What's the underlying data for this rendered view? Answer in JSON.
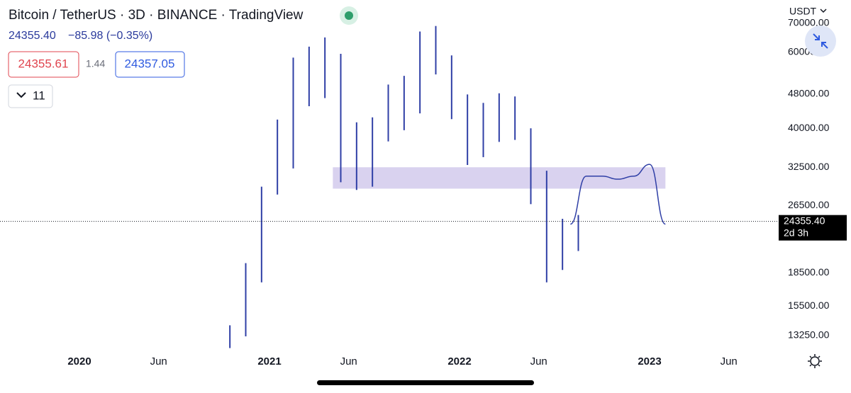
{
  "header": {
    "title": "Bitcoin / TetherUS · 3D · BINANCE · TradingView",
    "price": "24355.40",
    "change": "−85.98 (−0.35%)",
    "bid": "24355.61",
    "spread": "1.44",
    "ask": "24357.05",
    "indicators": "11",
    "currency": "USDT"
  },
  "chart_data": {
    "type": "ohlc",
    "color": "#2f3fa6",
    "log_scale": true,
    "ylim": [
      12240,
      79250
    ],
    "yticks": [
      {
        "value": 70000,
        "label": "70000.00"
      },
      {
        "value": 60000,
        "label": "60000.00"
      },
      {
        "value": 48000,
        "label": "48000.00"
      },
      {
        "value": 40000,
        "label": "40000.00"
      },
      {
        "value": 32500,
        "label": "32500.00"
      },
      {
        "value": 26500,
        "label": "26500.00"
      },
      {
        "value": 18500,
        "label": "18500.00"
      },
      {
        "value": 15500,
        "label": "15500.00"
      },
      {
        "value": 13250,
        "label": "13250.00"
      }
    ],
    "xticks": [
      {
        "value": "2020-01",
        "label": "2020"
      },
      {
        "value": "2020-06",
        "label": "Jun"
      },
      {
        "value": "2021-01",
        "label": "2021"
      },
      {
        "value": "2021-06",
        "label": "Jun"
      },
      {
        "value": "2022-01",
        "label": "2022"
      },
      {
        "value": "2022-06",
        "label": "Jun"
      },
      {
        "value": "2023-01",
        "label": "2023"
      },
      {
        "value": "2023-06",
        "label": "Jun"
      }
    ],
    "x": [
      "2020-10",
      "2020-11",
      "2020-12",
      "2021-01",
      "2021-02",
      "2021-03",
      "2021-04",
      "2021-05",
      "2021-06",
      "2021-07",
      "2021-08",
      "2021-09",
      "2021-10",
      "2021-11",
      "2021-12",
      "2022-01",
      "2022-02",
      "2022-03",
      "2022-04",
      "2022-05",
      "2022-06",
      "2022-07",
      "2022-08"
    ],
    "high": [
      14000,
      19500,
      29300,
      41900,
      58300,
      61800,
      64900,
      59500,
      41300,
      42400,
      50500,
      52900,
      67000,
      69000,
      59000,
      47900,
      45800,
      48200,
      47400,
      40000,
      31900,
      24700,
      25200
    ],
    "low": [
      12400,
      13200,
      17600,
      28100,
      32300,
      45000,
      47000,
      30000,
      28800,
      29300,
      37300,
      39600,
      43300,
      53300,
      42000,
      32900,
      34300,
      37200,
      37600,
      26700,
      17600,
      18800,
      20800
    ],
    "projection": {
      "color": "#2f3fa6",
      "x": [
        "2022-08",
        "2022-09",
        "2022-10",
        "2022-11",
        "2022-12",
        "2023-01",
        "2023-02"
      ],
      "values": [
        24000,
        31000,
        31000,
        30500,
        31000,
        33000,
        24000
      ]
    },
    "zone": {
      "color": "#d9d2ef",
      "x": [
        "2021-05",
        "2023-02"
      ],
      "y": [
        29000,
        32500
      ]
    },
    "last_price": {
      "value": 24355.4,
      "label": "24355.40"
    },
    "countdown": "2d 3h"
  }
}
